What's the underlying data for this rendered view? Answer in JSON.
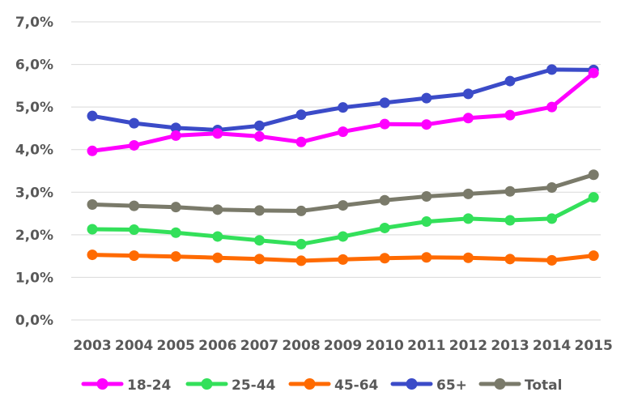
{
  "chart_data": {
    "type": "line",
    "title": "",
    "xlabel": "",
    "ylabel": "",
    "x": [
      "2003",
      "2004",
      "2005",
      "2006",
      "2007",
      "2008",
      "2009",
      "2010",
      "2011",
      "2012",
      "2013",
      "2014",
      "2015"
    ],
    "ylim": [
      0,
      7
    ],
    "y_ticks": [
      "0,0%",
      "1,0%",
      "2,0%",
      "3,0%",
      "4,0%",
      "5,0%",
      "6,0%",
      "7,0%"
    ],
    "grid": true,
    "legend_position": "bottom",
    "series": [
      {
        "name": "18-24",
        "color": "#ff00ff",
        "values": [
          3.97,
          4.1,
          4.33,
          4.38,
          4.31,
          4.18,
          4.42,
          4.6,
          4.59,
          4.74,
          4.81,
          5.0,
          5.8
        ]
      },
      {
        "name": "25-44",
        "color": "#33e05a",
        "values": [
          2.13,
          2.12,
          2.05,
          1.96,
          1.87,
          1.78,
          1.96,
          2.16,
          2.31,
          2.38,
          2.34,
          2.38,
          2.88
        ]
      },
      {
        "name": "45-64",
        "color": "#ff6a00",
        "values": [
          1.53,
          1.51,
          1.49,
          1.46,
          1.43,
          1.39,
          1.42,
          1.45,
          1.47,
          1.46,
          1.43,
          1.4,
          1.51
        ]
      },
      {
        "name": "65+",
        "color": "#3b4bc8",
        "values": [
          4.79,
          4.62,
          4.51,
          4.46,
          4.56,
          4.82,
          4.99,
          5.1,
          5.21,
          5.31,
          5.61,
          5.88,
          5.87
        ]
      },
      {
        "name": "Total",
        "color": "#7a7a6a",
        "values": [
          2.71,
          2.68,
          2.65,
          2.59,
          2.57,
          2.56,
          2.69,
          2.81,
          2.9,
          2.96,
          3.02,
          3.11,
          3.41
        ]
      }
    ]
  }
}
